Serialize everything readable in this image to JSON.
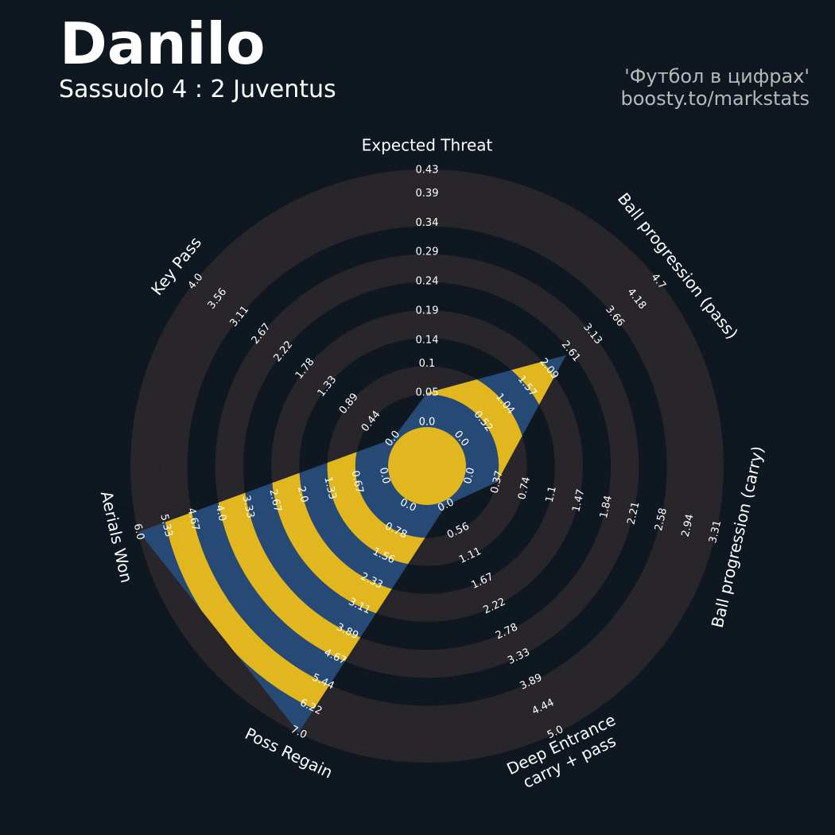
{
  "chart_data": {
    "type": "radar",
    "title": "Danilo",
    "subtitle": "Sassuolo 4 : 2 Juventus",
    "credits": [
      "'Футбол в цифрах'",
      "boosty.to/markstats"
    ],
    "series": [
      {
        "color": "#264a75",
        "highlight_color": "#e2b61f"
      }
    ],
    "background_colors": [
      "#0f1820",
      "#28252b"
    ],
    "params": [
      {
        "label": [
          "Expected Threat"
        ],
        "range": [
          0,
          0.43
        ],
        "value": 0.05,
        "ticks": [
          {
            "value": 0,
            "label": "0.0"
          },
          0.05,
          0.1,
          0.14,
          0.19,
          0.24,
          0.29,
          0.34,
          0.39,
          0.43
        ]
      },
      {
        "label": [
          "Ball progression (pass)"
        ],
        "range": [
          0,
          4.7
        ],
        "value": 2.5,
        "ticks": [
          {
            "value": 0,
            "label": "0.0"
          },
          0.52,
          1.04,
          1.57,
          2.09,
          2.61,
          3.13,
          3.66,
          4.18,
          4.7
        ]
      },
      {
        "label": [
          "Ball progression (carry)"
        ],
        "range": [
          0,
          3.31
        ],
        "value": 0.37,
        "ticks": [
          {
            "value": 0,
            "label": "0.0"
          },
          0.37,
          0.74,
          1.1,
          1.47,
          1.84,
          2.21,
          2.58,
          2.94,
          3.31
        ]
      },
      {
        "label": [
          "Deep Entrance",
          "carry + pass"
        ],
        "range": [
          0,
          5
        ],
        "value": 0,
        "ticks": [
          {
            "value": 0,
            "label": "0.0"
          },
          0.56,
          1.11,
          1.67,
          2.22,
          2.78,
          3.33,
          3.89,
          4.44,
          {
            "value": 5,
            "label": "5.0"
          }
        ]
      },
      {
        "label": [
          "Poss Regain"
        ],
        "range": [
          0,
          7
        ],
        "value": 7,
        "ticks": [
          {
            "value": 0,
            "label": "0.0"
          },
          0.78,
          1.56,
          2.33,
          3.11,
          3.89,
          4.67,
          5.44,
          6.22,
          {
            "value": 7,
            "label": "7.0"
          }
        ]
      },
      {
        "label": [
          "Aerials Won"
        ],
        "range": [
          0,
          6
        ],
        "value": 6,
        "ticks": [
          {
            "value": 0,
            "label": "0.0"
          },
          0.67,
          1.33,
          {
            "value": 2,
            "label": "2.0"
          },
          2.67,
          3.33,
          {
            "value": 4,
            "label": "4.0"
          },
          4.67,
          5.33,
          {
            "value": 6,
            "label": "6.0"
          }
        ]
      },
      {
        "label": [
          "Key Pass"
        ],
        "range": [
          0,
          4
        ],
        "value": 0,
        "ticks": [
          {
            "value": 0,
            "label": "0.0"
          },
          0.44,
          0.89,
          1.33,
          1.78,
          2.22,
          2.67,
          3.11,
          3.56,
          {
            "value": 4,
            "label": "4.0"
          }
        ]
      }
    ]
  }
}
